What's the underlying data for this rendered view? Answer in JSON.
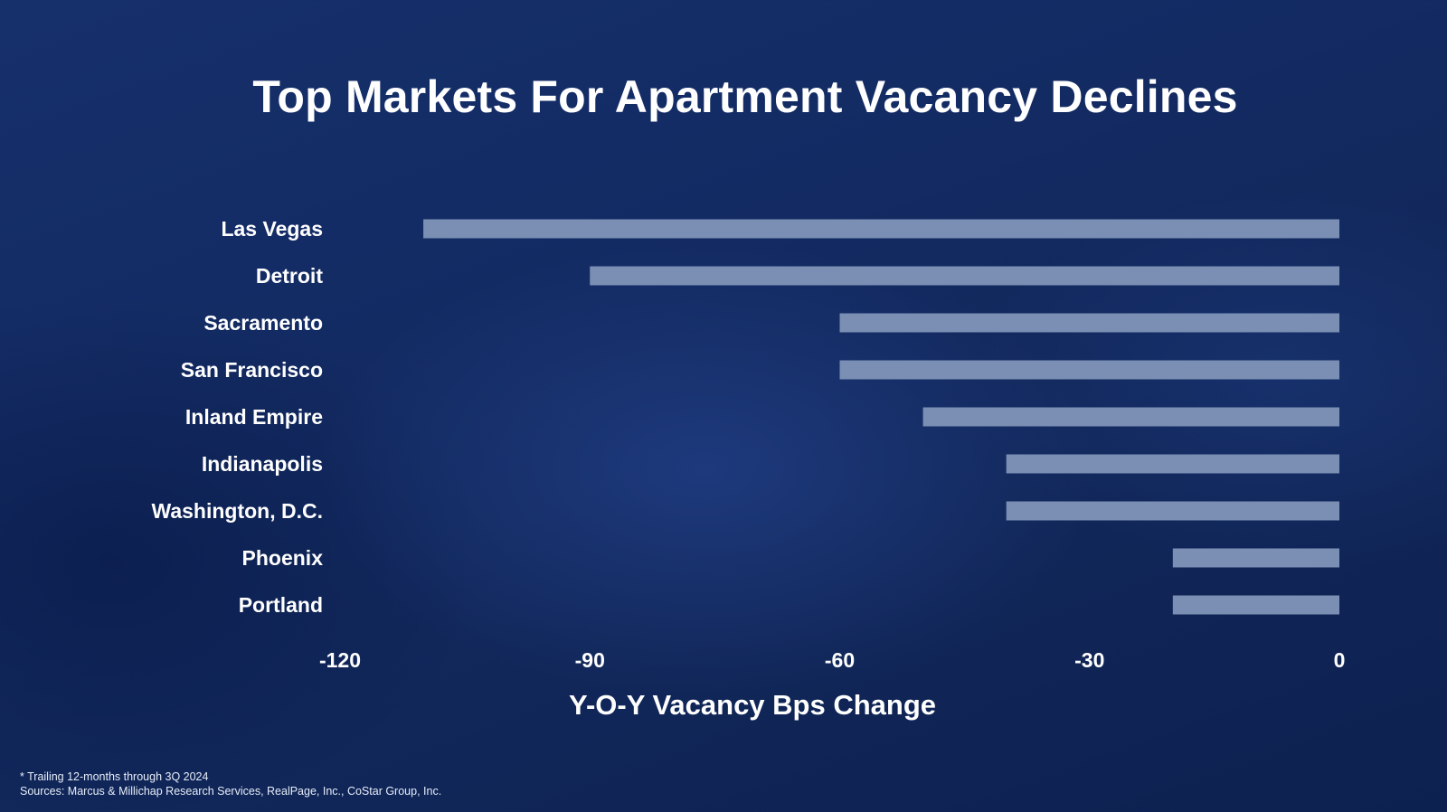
{
  "chart_data": {
    "type": "bar",
    "orientation": "horizontal",
    "title": "Top Markets For Apartment Vacancy Declines",
    "xlabel": "Y-O-Y Vacancy Bps Change",
    "ylabel": "",
    "categories": [
      "Las Vegas",
      "Detroit",
      "Sacramento",
      "San Francisco",
      "Inland Empire",
      "Indianapolis",
      "Washington, D.C.",
      "Phoenix",
      "Portland"
    ],
    "values": [
      -110,
      -90,
      -60,
      -60,
      -50,
      -40,
      -40,
      -20,
      -20
    ],
    "xlim": [
      -120,
      0
    ],
    "xticks": [
      -120,
      -90,
      -60,
      -30,
      0
    ],
    "xtick_labels": [
      "-120",
      "-90",
      "-60",
      "-30",
      "0"
    ],
    "grid": false,
    "legend": "none",
    "bar_color": "#7a8fb3"
  },
  "footnotes": {
    "note": "* Trailing 12-months through 3Q 2024",
    "sources": "Sources: Marcus & Millichap Research Services, RealPage, Inc., CoStar Group, Inc."
  }
}
